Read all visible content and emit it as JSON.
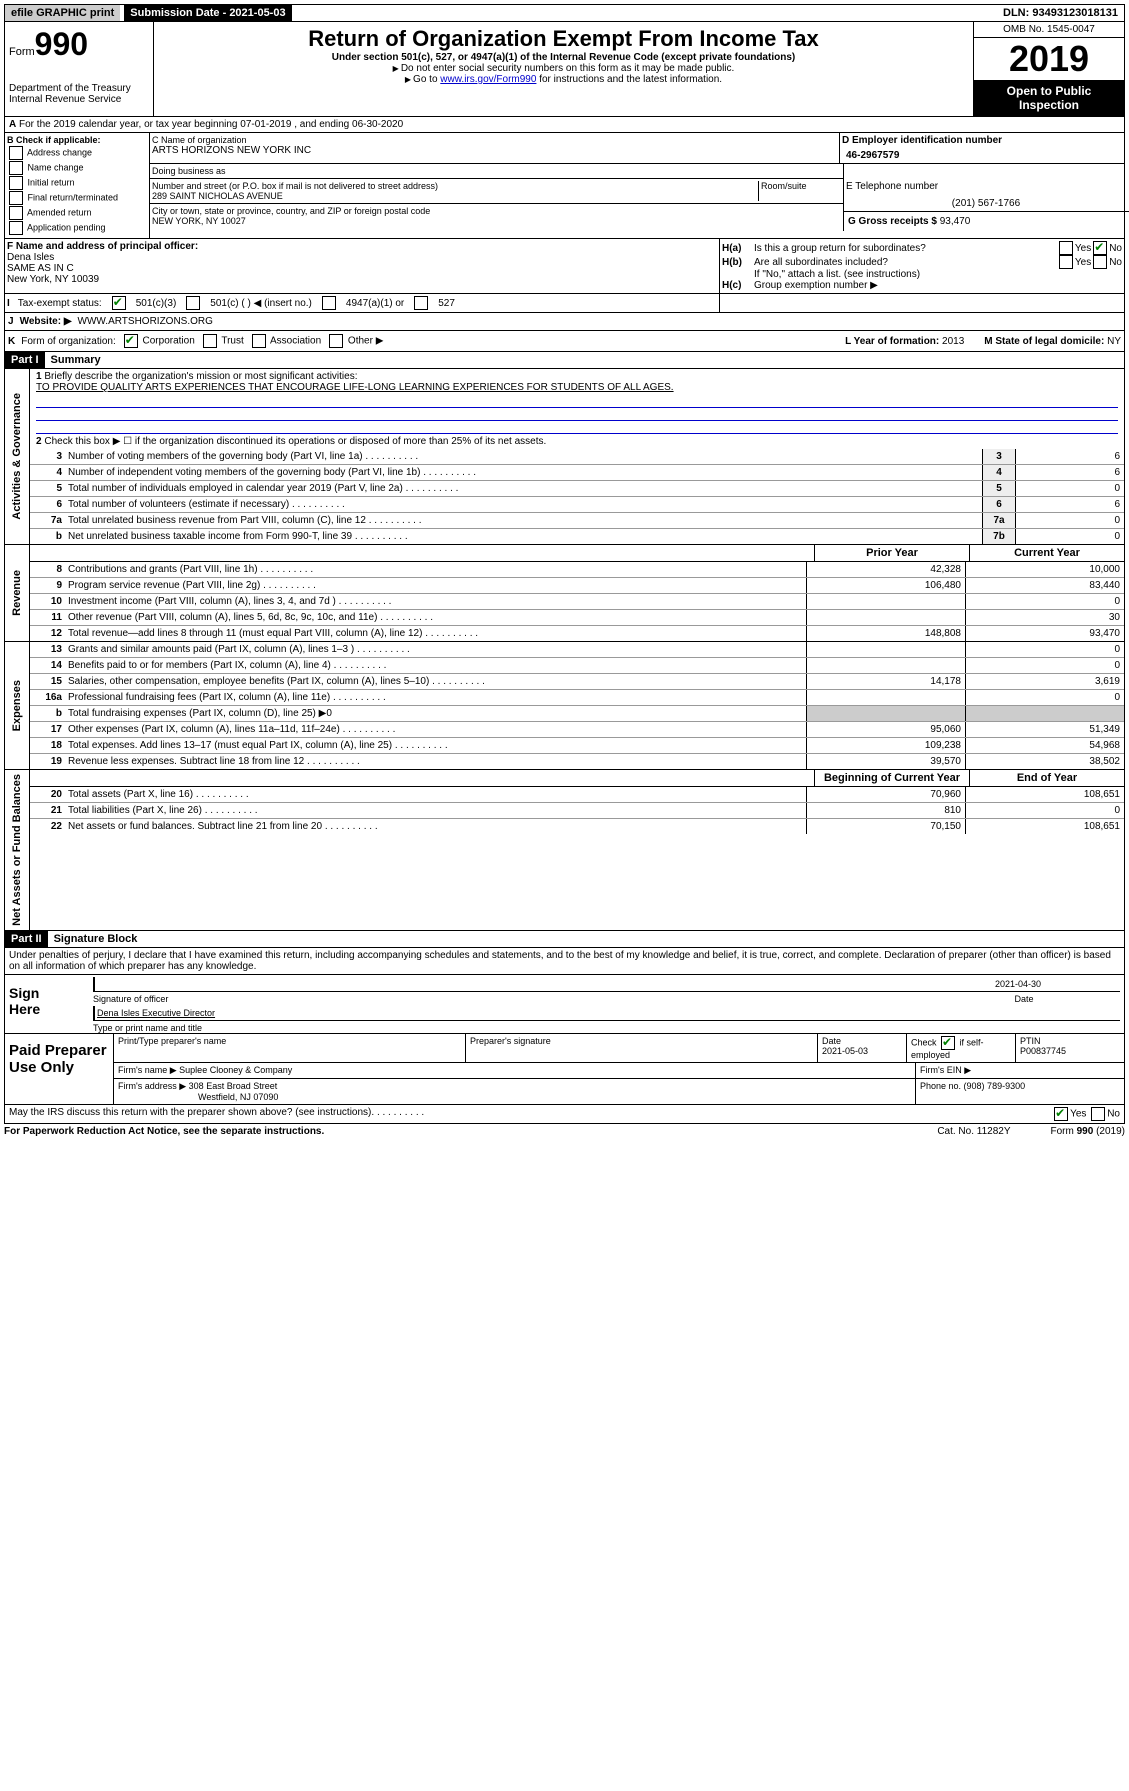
{
  "topbar": {
    "efile": "efile GRAPHIC print",
    "submission_label": "Submission Date - 2021-05-03",
    "dln": "DLN: 93493123018131"
  },
  "header": {
    "form_prefix": "Form",
    "form_num": "990",
    "dept": "Department of the Treasury\nInternal Revenue Service",
    "title": "Return of Organization Exempt From Income Tax",
    "subtitle": "Under section 501(c), 527, or 4947(a)(1) of the Internal Revenue Code (except private foundations)",
    "instr1": "Do not enter social security numbers on this form as it may be made public.",
    "instr2_pre": "Go to ",
    "instr2_link": "www.irs.gov/Form990",
    "instr2_post": " for instructions and the latest information.",
    "omb": "OMB No. 1545-0047",
    "year": "2019",
    "open": "Open to Public Inspection"
  },
  "row_a": "For the 2019 calendar year, or tax year beginning 07-01-2019       , and ending 06-30-2020",
  "section_b": {
    "header": "B Check if applicable:",
    "opts": [
      "Address change",
      "Name change",
      "Initial return",
      "Final return/terminated",
      "Amended return",
      "Application pending"
    ]
  },
  "section_c": {
    "name_label": "C Name of organization",
    "name": "ARTS HORIZONS NEW YORK INC",
    "dba_label": "Doing business as",
    "addr_label": "Number and street (or P.O. box if mail is not delivered to street address)",
    "addr": "289 SAINT NICHOLAS AVENUE",
    "room_label": "Room/suite",
    "city_label": "City or town, state or province, country, and ZIP or foreign postal code",
    "city": "NEW YORK, NY  10027"
  },
  "section_d": {
    "label": "D Employer identification number",
    "ein": "46-2967579"
  },
  "section_e": {
    "label": "E Telephone number",
    "tel": "(201) 567-1766"
  },
  "section_g": {
    "label": "G Gross receipts $ ",
    "val": "93,470"
  },
  "section_f": {
    "label": "F  Name and address of principal officer:",
    "name": "Dena Isles",
    "line2": "SAME AS IN C",
    "line3": "New York, NY  10039"
  },
  "section_h": {
    "a_label": "H(a)",
    "a_text": "Is this a group return for subordinates?",
    "b_label": "H(b)",
    "b_text": "Are all subordinates included?",
    "b_note": "If \"No,\" attach a list. (see instructions)",
    "c_label": "H(c)",
    "c_text": "Group exemption number ▶",
    "yes": "Yes",
    "no": "No"
  },
  "row_i": {
    "label": "I",
    "text": "Tax-exempt status:",
    "opt1": "501(c)(3)",
    "opt2": "501(c) (   ) ◀ (insert no.)",
    "opt3": "4947(a)(1) or",
    "opt4": "527"
  },
  "row_j": {
    "label": "J",
    "text": "Website: ▶",
    "val": "WWW.ARTSHORIZONS.ORG"
  },
  "row_k": {
    "label": "K",
    "text": "Form of organization:",
    "opts": [
      "Corporation",
      "Trust",
      "Association",
      "Other ▶"
    ],
    "l_label": "L Year of formation: ",
    "l_val": "2013",
    "m_label": "M State of legal domicile: ",
    "m_val": "NY"
  },
  "part1": {
    "header": "Part I",
    "title": "Summary"
  },
  "governance": {
    "side": "Activities & Governance",
    "line1_label": "1",
    "line1_text": "Briefly describe the organization's mission or most significant activities:",
    "mission": "TO PROVIDE QUALITY ARTS EXPERIENCES THAT ENCOURAGE LIFE-LONG LEARNING EXPERIENCES FOR STUDENTS OF ALL AGES.",
    "line2_label": "2",
    "line2_text": "Check this box ▶ ☐  if the organization discontinued its operations or disposed of more than 25% of its net assets.",
    "rows": [
      {
        "num": "3",
        "text": "Number of voting members of the governing body (Part VI, line 1a)",
        "box": "3",
        "val": "6"
      },
      {
        "num": "4",
        "text": "Number of independent voting members of the governing body (Part VI, line 1b)",
        "box": "4",
        "val": "6"
      },
      {
        "num": "5",
        "text": "Total number of individuals employed in calendar year 2019 (Part V, line 2a)",
        "box": "5",
        "val": "0"
      },
      {
        "num": "6",
        "text": "Total number of volunteers (estimate if necessary)",
        "box": "6",
        "val": "6"
      },
      {
        "num": "7a",
        "text": "Total unrelated business revenue from Part VIII, column (C), line 12",
        "box": "7a",
        "val": "0"
      },
      {
        "num": "b",
        "text": "Net unrelated business taxable income from Form 990-T, line 39",
        "box": "7b",
        "val": "0"
      }
    ]
  },
  "revenue": {
    "side": "Revenue",
    "prior_header": "Prior Year",
    "current_header": "Current Year",
    "rows": [
      {
        "num": "8",
        "text": "Contributions and grants (Part VIII, line 1h)",
        "prior": "42,328",
        "curr": "10,000"
      },
      {
        "num": "9",
        "text": "Program service revenue (Part VIII, line 2g)",
        "prior": "106,480",
        "curr": "83,440"
      },
      {
        "num": "10",
        "text": "Investment income (Part VIII, column (A), lines 3, 4, and 7d )",
        "prior": "",
        "curr": "0"
      },
      {
        "num": "11",
        "text": "Other revenue (Part VIII, column (A), lines 5, 6d, 8c, 9c, 10c, and 11e)",
        "prior": "",
        "curr": "30"
      },
      {
        "num": "12",
        "text": "Total revenue—add lines 8 through 11 (must equal Part VIII, column (A), line 12)",
        "prior": "148,808",
        "curr": "93,470"
      }
    ]
  },
  "expenses": {
    "side": "Expenses",
    "rows": [
      {
        "num": "13",
        "text": "Grants and similar amounts paid (Part IX, column (A), lines 1–3 )",
        "prior": "",
        "curr": "0"
      },
      {
        "num": "14",
        "text": "Benefits paid to or for members (Part IX, column (A), line 4)",
        "prior": "",
        "curr": "0"
      },
      {
        "num": "15",
        "text": "Salaries, other compensation, employee benefits (Part IX, column (A), lines 5–10)",
        "prior": "14,178",
        "curr": "3,619"
      },
      {
        "num": "16a",
        "text": "Professional fundraising fees (Part IX, column (A), line 11e)",
        "prior": "",
        "curr": "0"
      },
      {
        "num": "b",
        "text": "Total fundraising expenses (Part IX, column (D), line 25) ▶0",
        "prior": null,
        "curr": null
      },
      {
        "num": "17",
        "text": "Other expenses (Part IX, column (A), lines 11a–11d, 11f–24e)",
        "prior": "95,060",
        "curr": "51,349"
      },
      {
        "num": "18",
        "text": "Total expenses. Add lines 13–17 (must equal Part IX, column (A), line 25)",
        "prior": "109,238",
        "curr": "54,968"
      },
      {
        "num": "19",
        "text": "Revenue less expenses. Subtract line 18 from line 12",
        "prior": "39,570",
        "curr": "38,502"
      }
    ]
  },
  "netassets": {
    "side": "Net Assets or Fund Balances",
    "begin_header": "Beginning of Current Year",
    "end_header": "End of Year",
    "rows": [
      {
        "num": "20",
        "text": "Total assets (Part X, line 16)",
        "prior": "70,960",
        "curr": "108,651"
      },
      {
        "num": "21",
        "text": "Total liabilities (Part X, line 26)",
        "prior": "810",
        "curr": "0"
      },
      {
        "num": "22",
        "text": "Net assets or fund balances. Subtract line 21 from line 20",
        "prior": "70,150",
        "curr": "108,651"
      }
    ]
  },
  "part2": {
    "header": "Part II",
    "title": "Signature Block",
    "declaration": "Under penalties of perjury, I declare that I have examined this return, including accompanying schedules and statements, and to the best of my knowledge and belief, it is true, correct, and complete. Declaration of preparer (other than officer) is based on all information of which preparer has any knowledge."
  },
  "sign": {
    "label": "Sign Here",
    "sig_label": "Signature of officer",
    "date": "2021-04-30",
    "date_label": "Date",
    "name": "Dena Isles  Executive Director",
    "name_label": "Type or print name and title"
  },
  "paid": {
    "label": "Paid Preparer Use Only",
    "h1": "Print/Type preparer's name",
    "h2": "Preparer's signature",
    "h3": "Date",
    "date": "2021-05-03",
    "h4_pre": "Check",
    "h4_post": "if self-employed",
    "h5": "PTIN",
    "ptin": "P00837745",
    "firm_label": "Firm's name    ▶",
    "firm": "Suplee Clooney & Company",
    "ein_label": "Firm's EIN ▶",
    "addr_label": "Firm's address ▶",
    "addr1": "308 East Broad Street",
    "addr2": "Westfield, NJ  07090",
    "phone_label": "Phone no. ",
    "phone": "(908) 789-9300"
  },
  "footer": {
    "discuss": "May the IRS discuss this return with the preparer shown above? (see instructions)",
    "yes": "Yes",
    "no": "No",
    "paperwork": "For Paperwork Reduction Act Notice, see the separate instructions.",
    "cat": "Cat. No. 11282Y",
    "form": "Form 990 (2019)"
  }
}
